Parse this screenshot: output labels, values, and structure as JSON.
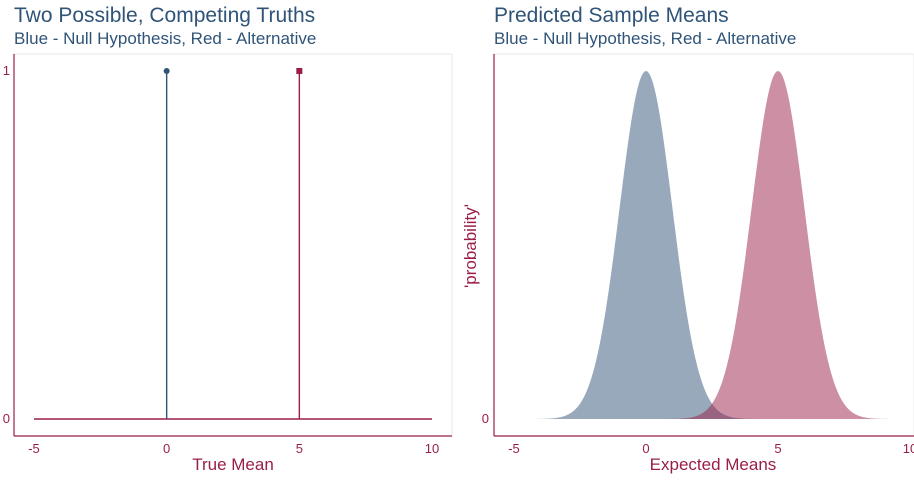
{
  "colors": {
    "null": "#2f5478",
    "alt": "#9a1f47",
    "axis": "#9a1f47",
    "border": "#e8e8e8"
  },
  "chart_data": [
    {
      "type": "line",
      "title": "Two Possible, Competing Truths",
      "subtitle": "Blue - Null Hypothesis, Red - Alternative",
      "xlabel": "True Mean",
      "ylabel": "",
      "xlim": [
        -5,
        10
      ],
      "ylim": [
        0,
        1
      ],
      "xticks": [
        "-5",
        "0",
        "5",
        "10"
      ],
      "yticks": [
        "0",
        "1"
      ],
      "series": [
        {
          "x": [
            0,
            0
          ],
          "y": [
            0,
            1
          ],
          "color": "#2f5478",
          "marker": "circle"
        },
        {
          "x": [
            5,
            5
          ],
          "y": [
            0,
            1
          ],
          "color": "#9a1f47",
          "marker": "square"
        }
      ],
      "baseline": {
        "x": [
          -5,
          10
        ],
        "y": 0
      }
    },
    {
      "type": "area",
      "title": "Predicted Sample Means",
      "subtitle": "Blue - Null Hypothesis, Red - Alternative",
      "xlabel": "Expected Means",
      "ylabel": "'probability'",
      "xlim": [
        -5,
        10
      ],
      "ylim": [
        0,
        1
      ],
      "xticks": [
        "-5",
        "0",
        "5",
        "10"
      ],
      "yticks": [
        "0"
      ],
      "series": [
        {
          "distribution": "normal",
          "mean": 0,
          "sd": 1,
          "color": "#2f5478"
        },
        {
          "distribution": "normal",
          "mean": 5,
          "sd": 1,
          "color": "#9a1f47"
        }
      ]
    }
  ]
}
